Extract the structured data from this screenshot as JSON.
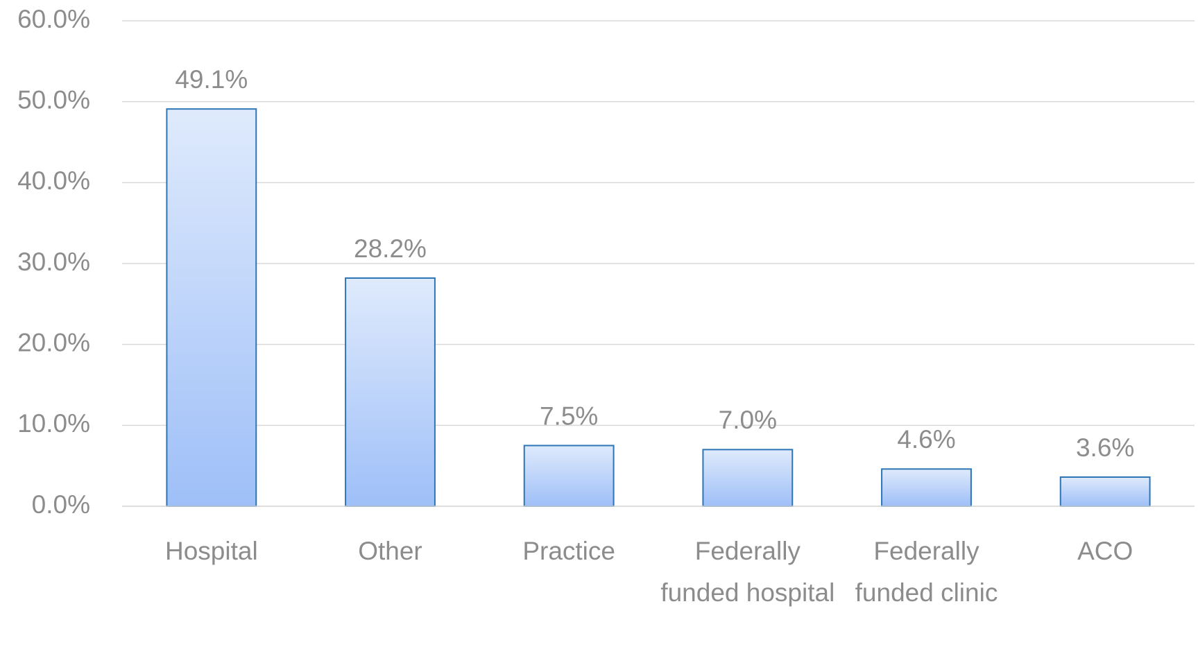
{
  "chart_data": {
    "type": "bar",
    "categories": [
      "Hospital",
      "Other",
      "Practice",
      "Federally funded hospital",
      "Federally funded clinic",
      "ACO"
    ],
    "values": [
      49.1,
      28.2,
      7.5,
      7.0,
      4.6,
      3.6
    ],
    "value_labels": [
      "49.1%",
      "28.2%",
      "7.5%",
      "7.0%",
      "4.6%",
      "3.6%"
    ],
    "color": "#2e75b6",
    "ylim": [
      0,
      60
    ],
    "yticks": [
      {
        "value": 0,
        "label": "0.0%"
      },
      {
        "value": 10,
        "label": "10.0%"
      },
      {
        "value": 20,
        "label": "20.0%"
      },
      {
        "value": 30,
        "label": "30.0%"
      },
      {
        "value": 40,
        "label": "40.0%"
      },
      {
        "value": 50,
        "label": "50.0%"
      },
      {
        "value": 60,
        "label": "60.0%"
      }
    ],
    "grid": true
  }
}
